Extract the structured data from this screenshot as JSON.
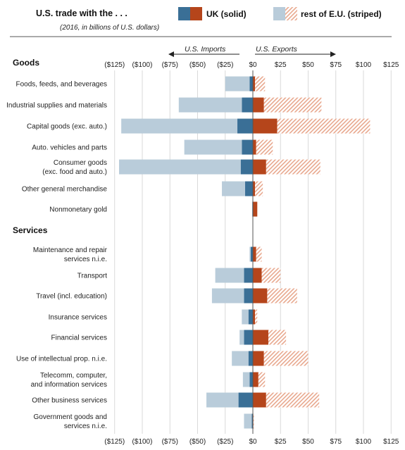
{
  "title": "U.S. trade with the . . .",
  "subtitle": "(2016, in billions of U.S. dollars)",
  "legend": {
    "uk_label": "UK (solid)",
    "eu_label": "rest of E.U. (striped)"
  },
  "direction": {
    "imports": "U.S. Imports",
    "exports": "U.S. Exports"
  },
  "colors": {
    "uk_imports": "#3a6f96",
    "eu_imports": "#b9ccda",
    "uk_exports": "#b5451b",
    "eu_exports_stripe": "#e8a88e",
    "gridline": "#d9d9d9",
    "zero_line": "#555555"
  },
  "chart_data": {
    "type": "bar",
    "orientation": "horizontal",
    "stacked": true,
    "xlim": [
      -125,
      125
    ],
    "x_ticks": [
      -125,
      -100,
      -75,
      -50,
      -25,
      0,
      25,
      50,
      75,
      100,
      125
    ],
    "x_tick_labels": [
      "($125)",
      "($100)",
      "($75)",
      "($50)",
      "($25)",
      "$0",
      "$25",
      "$50",
      "$75",
      "$100",
      "$125"
    ],
    "grid": true,
    "legend_position": "top",
    "sections": [
      {
        "name": "Goods",
        "categories": [
          {
            "label": [
              "Foods, feeds, and beverages"
            ],
            "uk_imports": 3,
            "eu_imports": 22,
            "uk_exports": 2,
            "eu_exports": 9
          },
          {
            "label": [
              "Industrial supplies and materials"
            ],
            "uk_imports": 10,
            "eu_imports": 57,
            "uk_exports": 10,
            "eu_exports": 52
          },
          {
            "label": [
              "Capital goods (exc. auto.)"
            ],
            "uk_imports": 14,
            "eu_imports": 105,
            "uk_exports": 22,
            "eu_exports": 84
          },
          {
            "label": [
              "Auto. vehicles and parts"
            ],
            "uk_imports": 10,
            "eu_imports": 52,
            "uk_exports": 3,
            "eu_exports": 15
          },
          {
            "label": [
              "Consumer goods",
              "(exc. food and auto.)"
            ],
            "uk_imports": 11,
            "eu_imports": 110,
            "uk_exports": 12,
            "eu_exports": 49
          },
          {
            "label": [
              "Other general merchandise"
            ],
            "uk_imports": 7,
            "eu_imports": 21,
            "uk_exports": 2,
            "eu_exports": 7
          },
          {
            "label": [
              "Nonmonetary gold"
            ],
            "uk_imports": 0.5,
            "eu_imports": 0,
            "uk_exports": 4,
            "eu_exports": 0
          }
        ]
      },
      {
        "name": "Services",
        "categories": [
          {
            "label": [
              "Maintenance and repair",
              "services n.i.e."
            ],
            "uk_imports": 2,
            "eu_imports": 1,
            "uk_exports": 3,
            "eu_exports": 5
          },
          {
            "label": [
              "Transport"
            ],
            "uk_imports": 8,
            "eu_imports": 26,
            "uk_exports": 8,
            "eu_exports": 17
          },
          {
            "label": [
              "Travel (incl. education)"
            ],
            "uk_imports": 8,
            "eu_imports": 29,
            "uk_exports": 13,
            "eu_exports": 27
          },
          {
            "label": [
              "Insurance services"
            ],
            "uk_imports": 4,
            "eu_imports": 6,
            "uk_exports": 2,
            "eu_exports": 2
          },
          {
            "label": [
              "Financial services"
            ],
            "uk_imports": 8,
            "eu_imports": 4,
            "uk_exports": 14,
            "eu_exports": 16
          },
          {
            "label": [
              "Use of intellectual prop. n.i.e."
            ],
            "uk_imports": 4,
            "eu_imports": 15,
            "uk_exports": 10,
            "eu_exports": 40
          },
          {
            "label": [
              "Telecomm, computer,",
              "and information services"
            ],
            "uk_imports": 3,
            "eu_imports": 6,
            "uk_exports": 5,
            "eu_exports": 6
          },
          {
            "label": [
              "Other business services"
            ],
            "uk_imports": 13,
            "eu_imports": 29,
            "uk_exports": 12,
            "eu_exports": 48
          },
          {
            "label": [
              "Government goods and",
              "services n.i.e."
            ],
            "uk_imports": 1,
            "eu_imports": 7,
            "uk_exports": 0.5,
            "eu_exports": 0.5
          }
        ]
      }
    ]
  }
}
